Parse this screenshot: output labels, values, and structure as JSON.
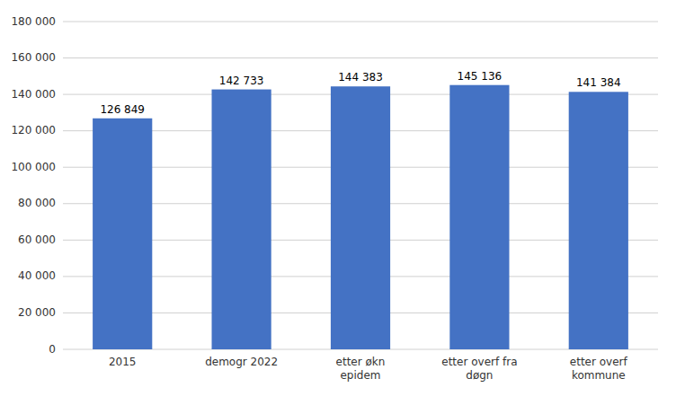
{
  "chart_data": {
    "type": "bar",
    "categories": [
      "2015",
      "demogr 2022",
      "etter økn\nepidem",
      "etter overf fra\ndøgn",
      "etter overf\nkommune"
    ],
    "values": [
      126849,
      142733,
      144383,
      145136,
      141384
    ],
    "value_labels": [
      "126 849",
      "142 733",
      "144 383",
      "145 136",
      "141 384"
    ],
    "data_labels": true,
    "color": "#4472C4",
    "ylim": [
      0,
      180000
    ],
    "yticks": [
      0,
      {
        "value": 20000,
        "label": "20 000"
      },
      {
        "value": 40000,
        "label": "40 000"
      },
      {
        "value": 60000,
        "label": "60 000"
      },
      {
        "value": 80000,
        "label": "80 000"
      },
      {
        "value": 100000,
        "label": "100 000"
      },
      {
        "value": 120000,
        "label": "120 000"
      },
      {
        "value": 140000,
        "label": "140 000"
      },
      {
        "value": 160000,
        "label": "160 000"
      },
      {
        "value": 180000,
        "label": "180 000"
      }
    ],
    "grid": true
  }
}
